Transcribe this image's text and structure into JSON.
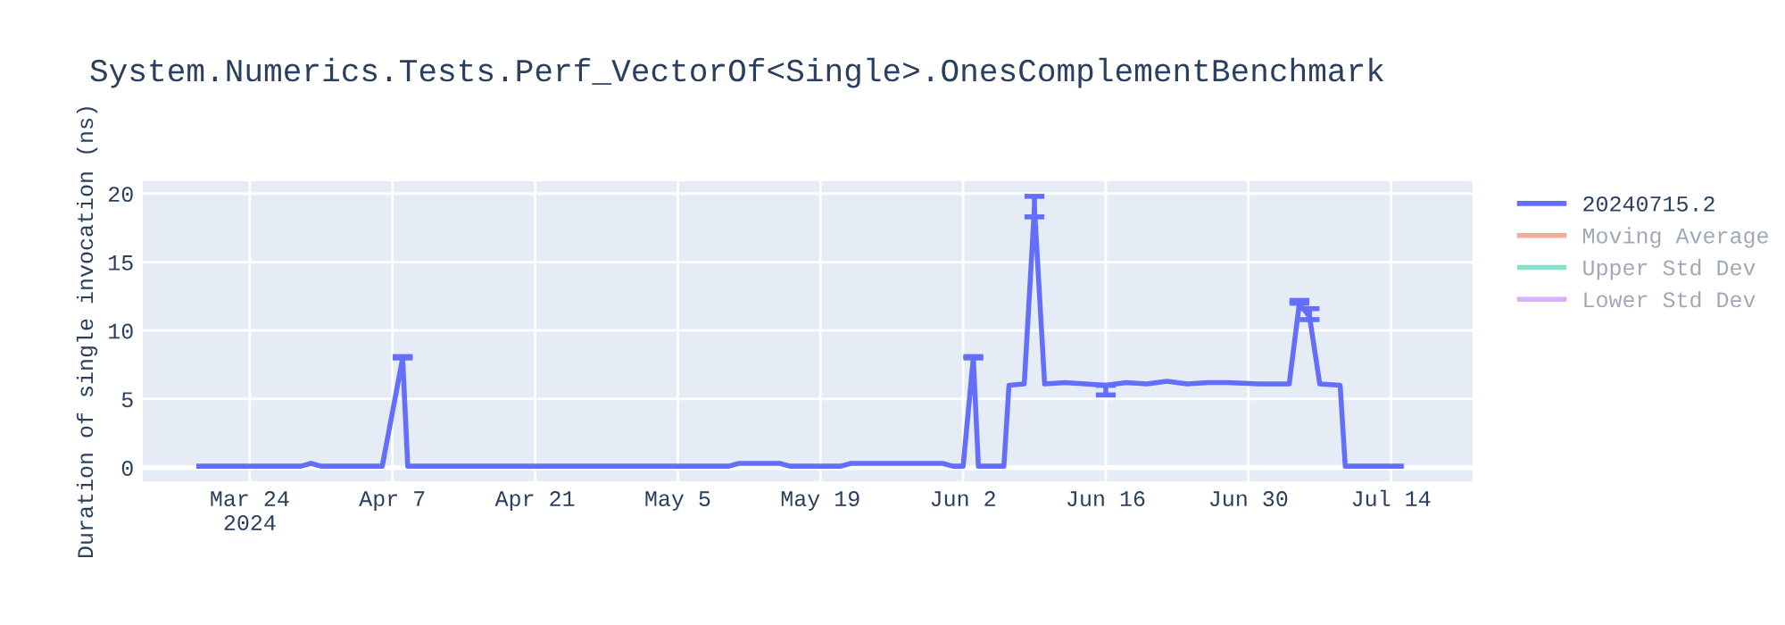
{
  "chart_data": {
    "type": "line",
    "title": "System.Numerics.Tests.Perf_VectorOf<Single>.OnesComplementBenchmark",
    "ylabel": "Duration of single invocation (ns)",
    "xlim": [
      "2024-03-13T12:00",
      "2024-07-22"
    ],
    "ylim": [
      -1.0,
      20.9
    ],
    "xticks": [
      {
        "value": "2024-03-24",
        "label": "Mar 24\n2024"
      },
      {
        "value": "2024-04-07",
        "label": "Apr 7"
      },
      {
        "value": "2024-04-21",
        "label": "Apr 21"
      },
      {
        "value": "2024-05-05",
        "label": "May 5"
      },
      {
        "value": "2024-05-19",
        "label": "May 19"
      },
      {
        "value": "2024-06-02",
        "label": "Jun 2"
      },
      {
        "value": "2024-06-16",
        "label": "Jun 16"
      },
      {
        "value": "2024-06-30",
        "label": "Jun 30"
      },
      {
        "value": "2024-07-14",
        "label": "Jul 14"
      }
    ],
    "yticks": [
      0,
      5,
      10,
      15,
      20
    ],
    "grid": true,
    "legend": "top right",
    "line_style": "solid",
    "marker": "none",
    "series": [
      {
        "name": "20240715.2",
        "color": "#636efa",
        "x": [
          "2024-03-19",
          "2024-03-22",
          "2024-03-29",
          "2024-03-30",
          "2024-03-31",
          "2024-04-06",
          "2024-04-08",
          "2024-04-08T12:00",
          "2024-04-15",
          "2024-04-25",
          "2024-05-05",
          "2024-05-10",
          "2024-05-11",
          "2024-05-15",
          "2024-05-16",
          "2024-05-21",
          "2024-05-22",
          "2024-05-31",
          "2024-06-01",
          "2024-06-02",
          "2024-06-03",
          "2024-06-03T12:00",
          "2024-06-06",
          "2024-06-06T12:00",
          "2024-06-08",
          "2024-06-09",
          "2024-06-10",
          "2024-06-12",
          "2024-06-14",
          "2024-06-16",
          "2024-06-18",
          "2024-06-20",
          "2024-06-22",
          "2024-06-24",
          "2024-06-26",
          "2024-06-28",
          "2024-07-01",
          "2024-07-04",
          "2024-07-05",
          "2024-07-06",
          "2024-07-07",
          "2024-07-09",
          "2024-07-09T12:00",
          "2024-07-15"
        ],
        "values": [
          0.1,
          0.1,
          0.1,
          0.3,
          0.1,
          0.1,
          8,
          0.1,
          0.1,
          0.1,
          0.1,
          0.1,
          0.3,
          0.3,
          0.1,
          0.1,
          0.3,
          0.3,
          0.1,
          0.1,
          8,
          0.1,
          0.1,
          6.0,
          6.1,
          19,
          6.1,
          6.2,
          6.1,
          6.0,
          6.2,
          6.1,
          6.3,
          6.1,
          6.2,
          6.2,
          6.1,
          6.1,
          12.0,
          11.0,
          6.1,
          6.0,
          0.1,
          0.1
        ],
        "errors": [
          null,
          null,
          null,
          null,
          null,
          null,
          [
            8,
            8.1
          ],
          null,
          null,
          null,
          null,
          null,
          null,
          null,
          null,
          null,
          null,
          null,
          null,
          null,
          [
            8,
            8.1
          ],
          null,
          null,
          null,
          null,
          [
            18.3,
            19.8
          ],
          null,
          null,
          null,
          [
            5.3,
            6.0
          ],
          null,
          null,
          null,
          null,
          null,
          null,
          null,
          null,
          [
            12.0,
            12.2
          ],
          [
            10.8,
            11.6
          ],
          null,
          null,
          null,
          null
        ]
      },
      {
        "name": "Moving Average",
        "color": "#ef553b"
      },
      {
        "name": "Upper Std Dev",
        "color": "#00cc96"
      },
      {
        "name": "Lower Std Dev",
        "color": "#ab63fa"
      }
    ]
  }
}
